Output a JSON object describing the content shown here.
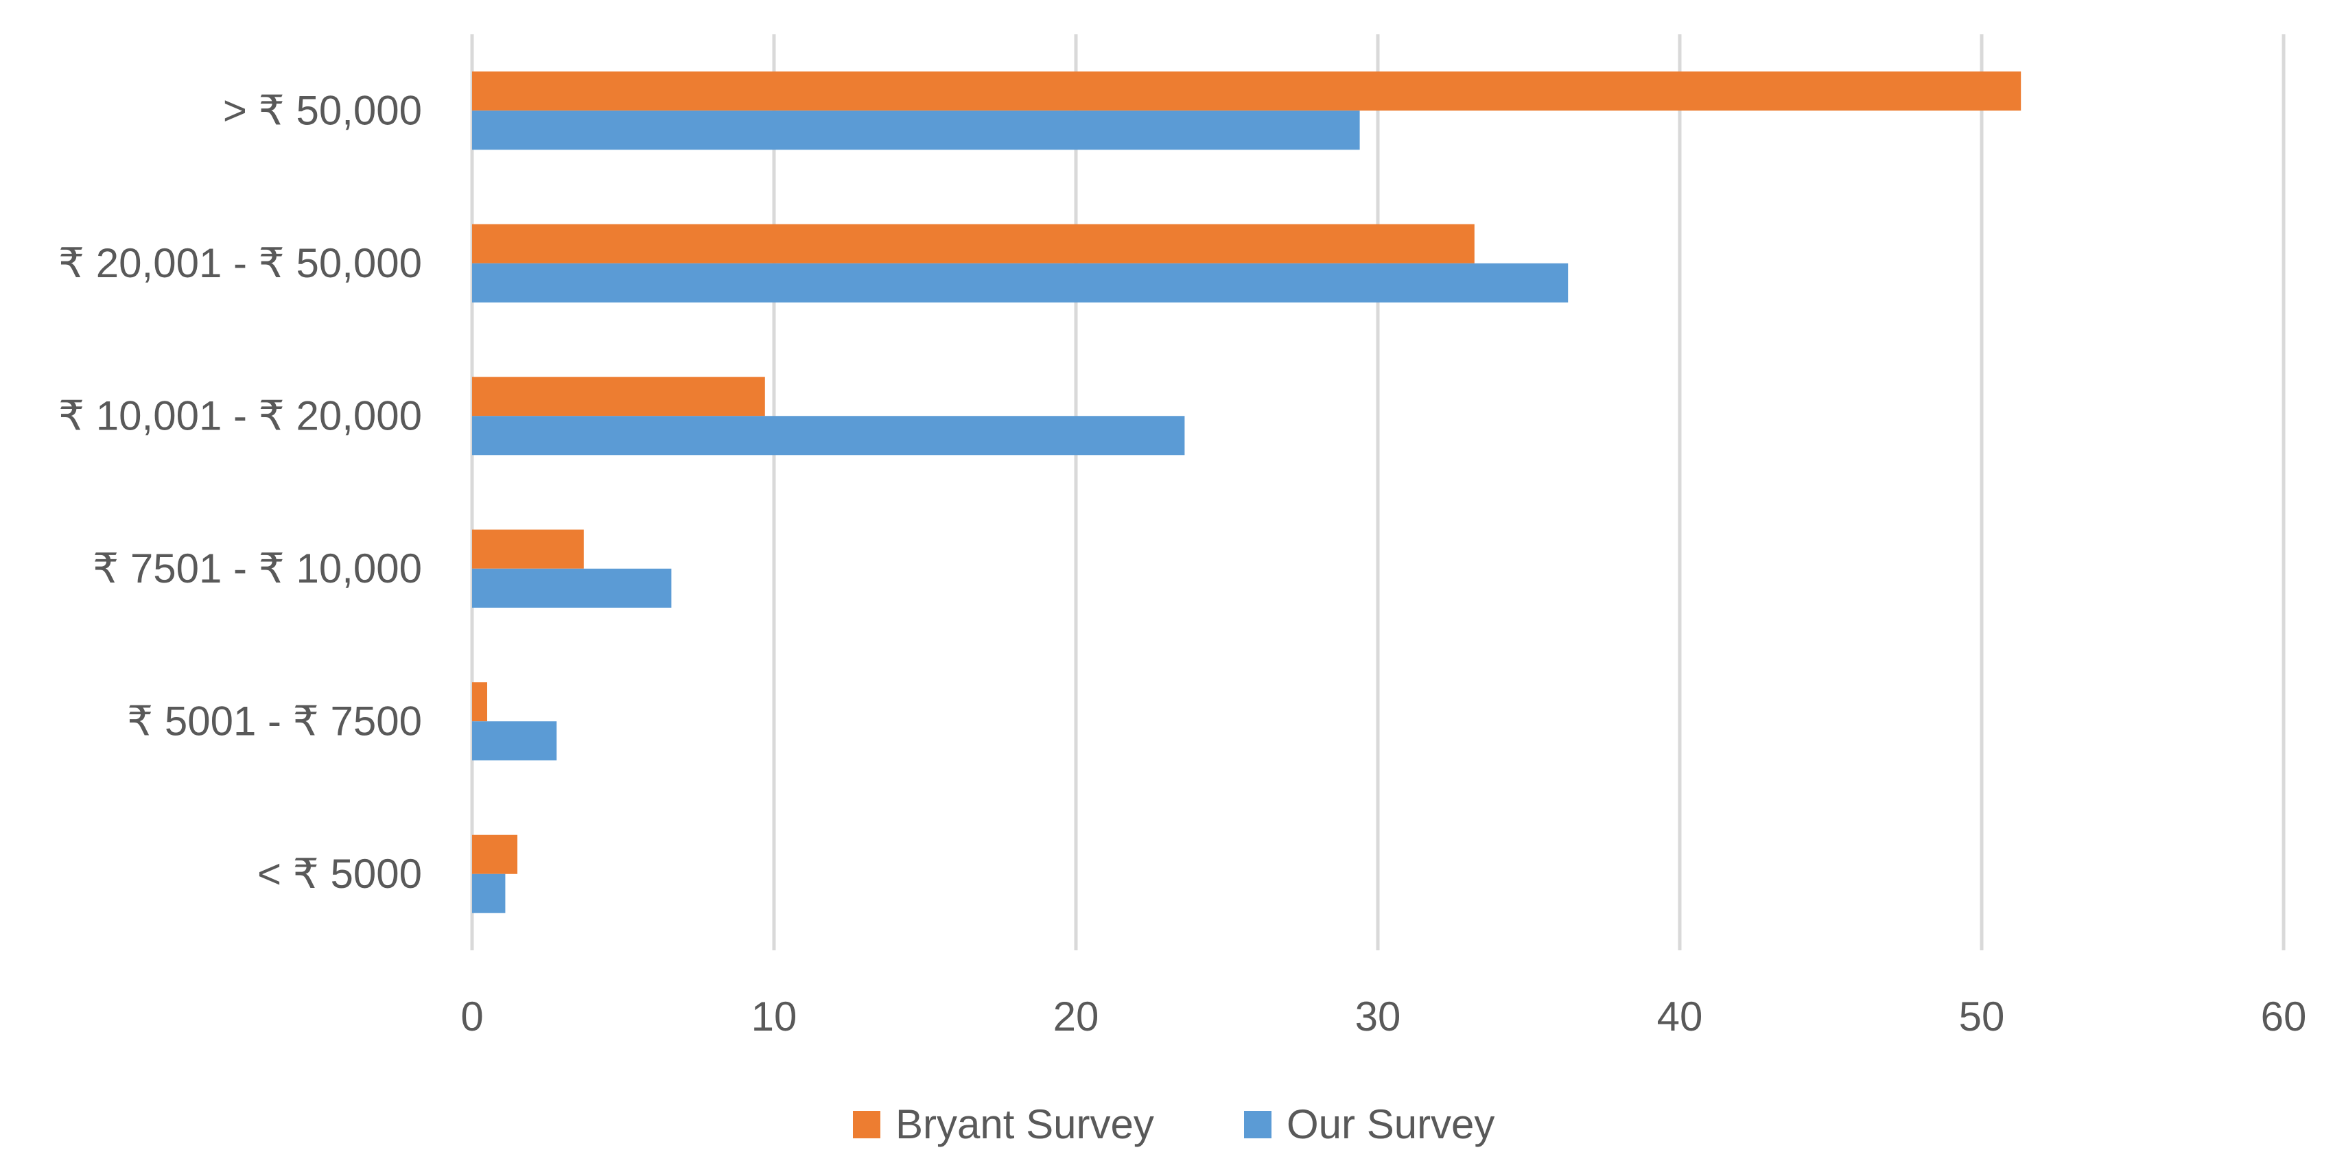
{
  "chart_data": {
    "type": "bar",
    "orientation": "horizontal",
    "title": "",
    "xlabel": "",
    "ylabel": "",
    "categories": [
      "< ₹ 5000",
      "₹ 5001 - ₹ 7500",
      "₹ 7501 - ₹ 10,000",
      "₹ 10,001 - ₹ 20,000",
      "₹ 20,001 - ₹ 50,000",
      "> ₹ 50,000"
    ],
    "series": [
      {
        "name": "Bryant Survey",
        "color": "#ED7D31",
        "values": [
          1.5,
          0.5,
          3.7,
          9.7,
          33.2,
          51.3
        ]
      },
      {
        "name": "Our Survey",
        "color": "#5B9BD5",
        "values": [
          1.1,
          2.8,
          6.6,
          23.6,
          36.3,
          29.4
        ]
      }
    ],
    "xlim": [
      0,
      60
    ],
    "xticks": [
      0,
      10,
      20,
      30,
      40,
      50,
      60
    ],
    "grid": true,
    "legend_position": "bottom",
    "gridline_color": "#D9D9D9"
  }
}
